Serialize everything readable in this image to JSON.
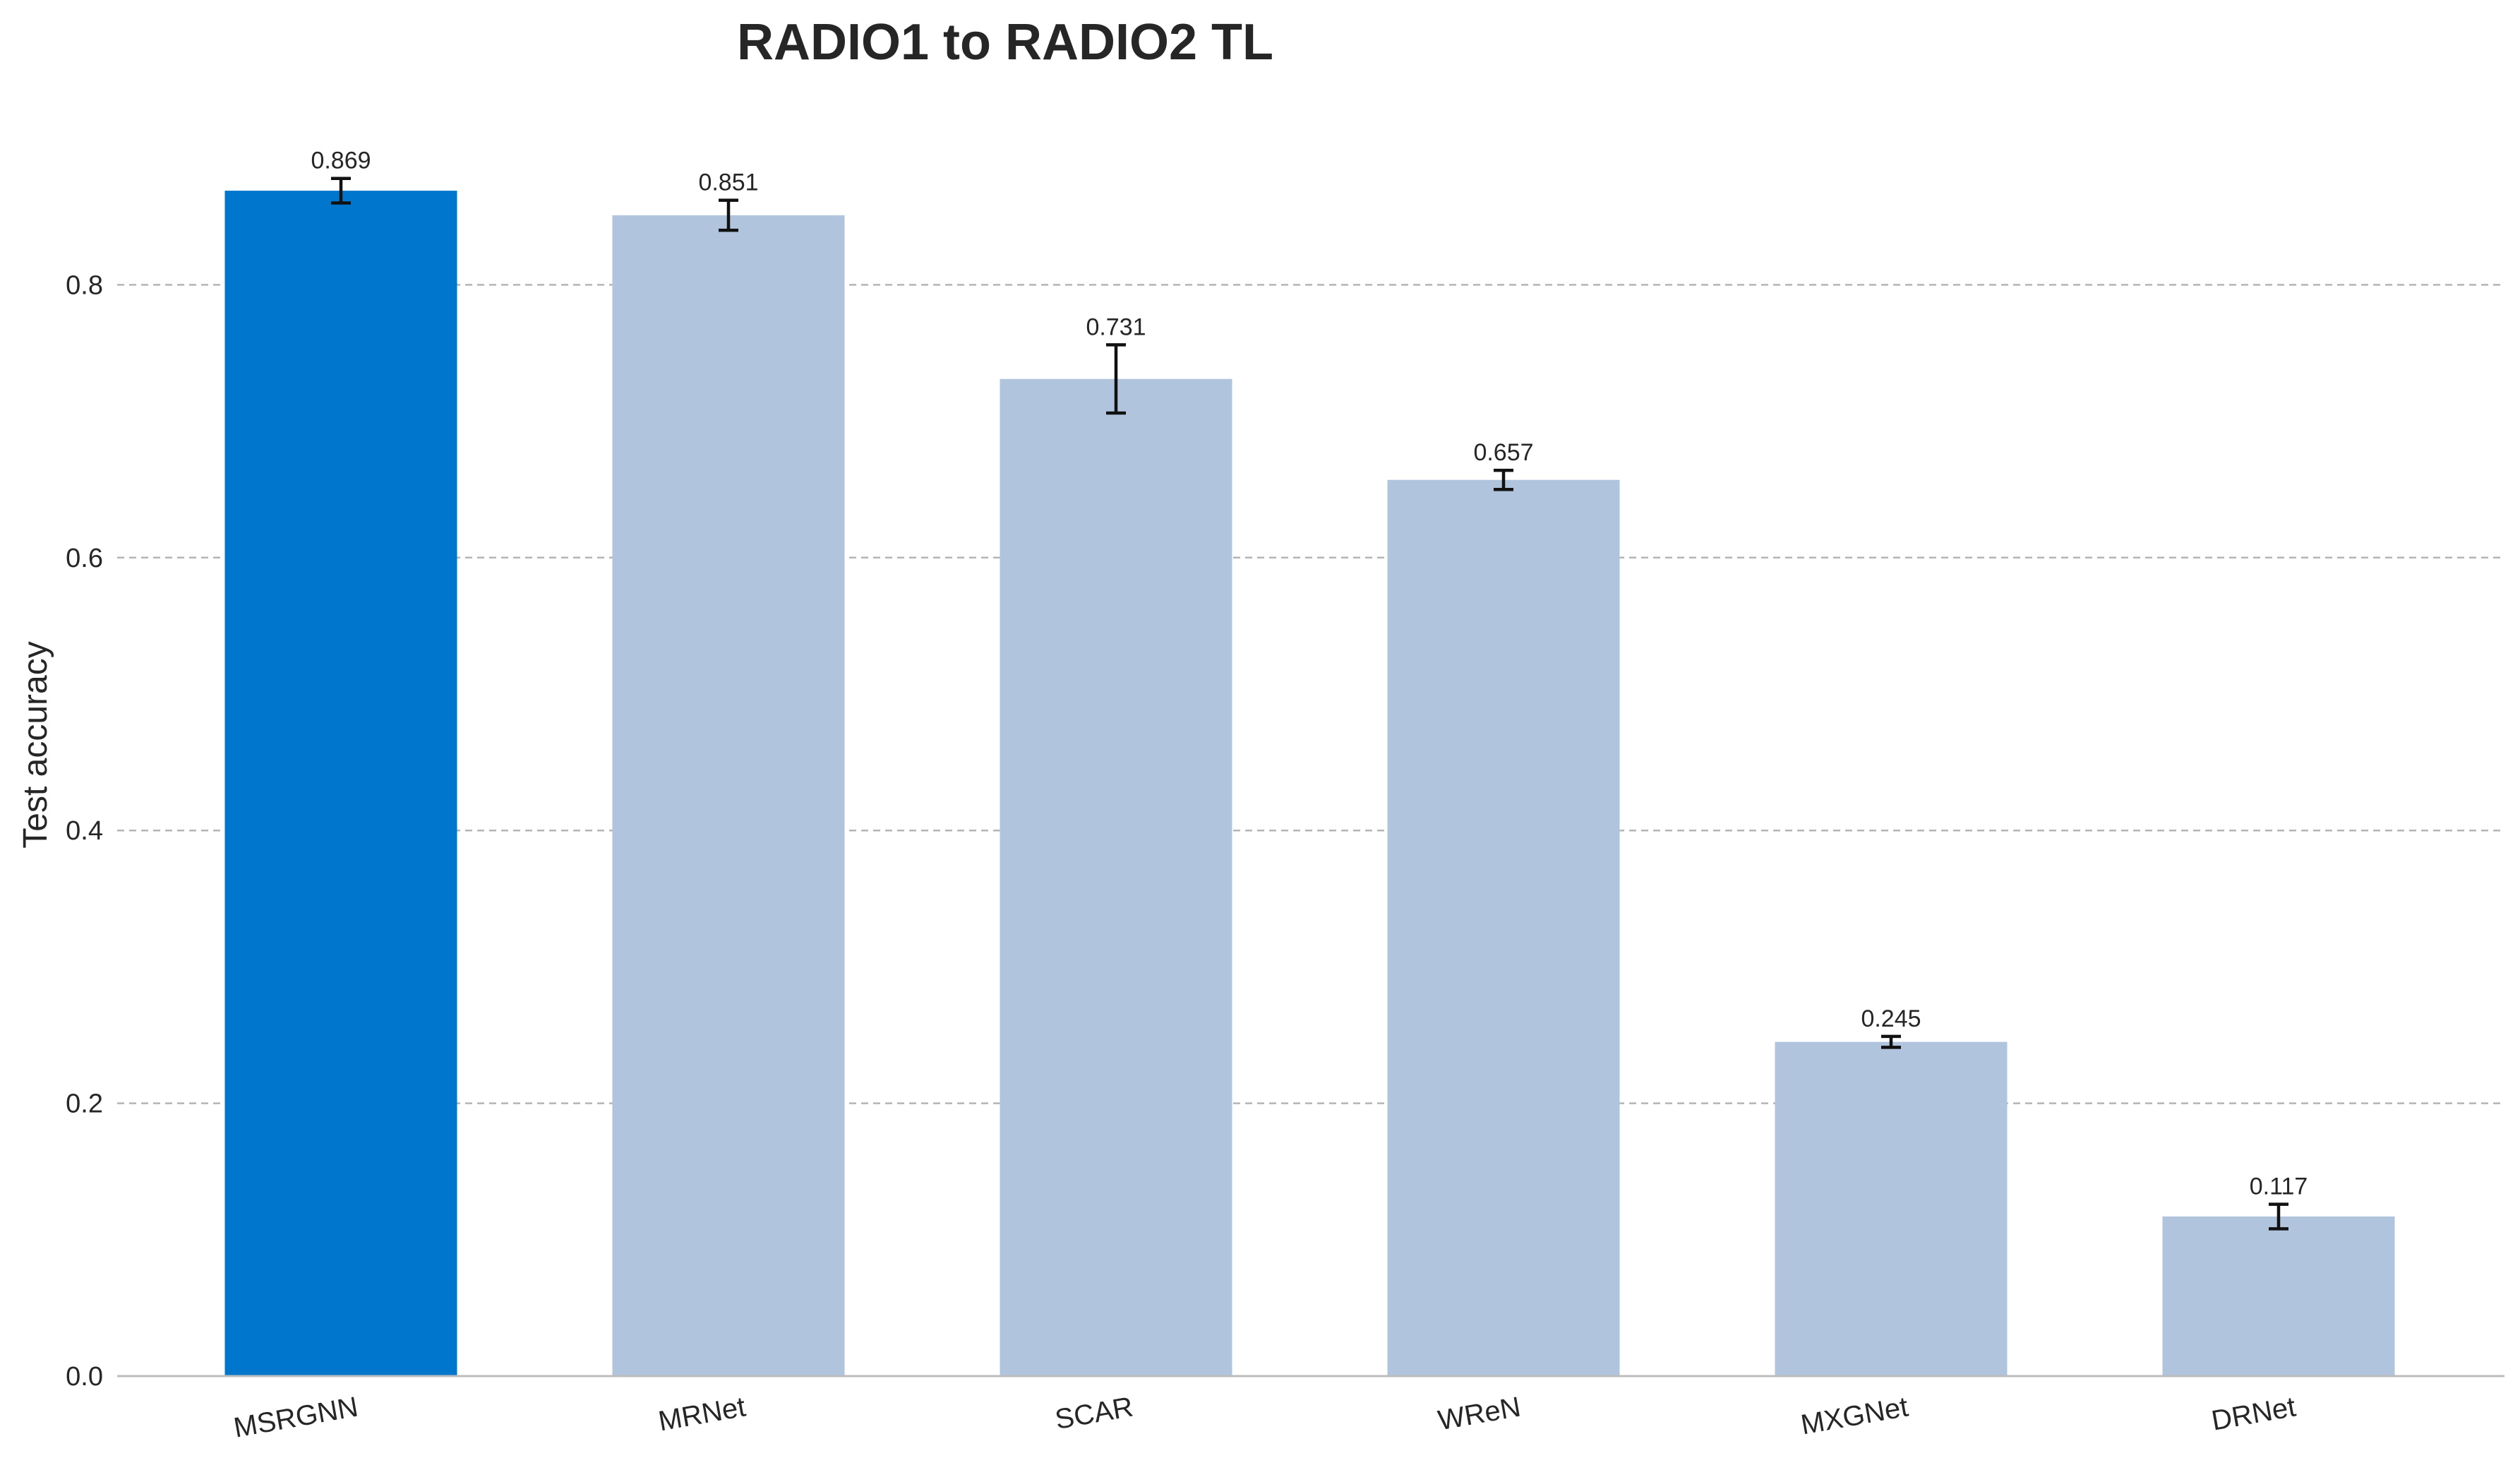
{
  "chart_data": {
    "type": "bar",
    "title": "RADIO1 to RADIO2 TL",
    "xlabel": "",
    "ylabel": "Test accuracy",
    "categories": [
      "MSRGNN",
      "MRNet",
      "SCAR",
      "WReN",
      "MXGNet",
      "DRNet"
    ],
    "values": [
      0.869,
      0.851,
      0.731,
      0.657,
      0.245,
      0.117
    ],
    "value_labels": [
      "0.869",
      "0.851",
      "0.731",
      "0.657",
      "0.245",
      "0.117"
    ],
    "errors": [
      0.009,
      0.011,
      0.025,
      0.007,
      0.004,
      0.009
    ],
    "ylim": [
      0.0,
      0.92
    ],
    "yticks": [
      0.0,
      0.2,
      0.4,
      0.6,
      0.8
    ],
    "ytick_labels": [
      "0.0",
      "0.2",
      "0.4",
      "0.6",
      "0.8"
    ],
    "grid": "horizontal dashed",
    "legend": "none",
    "colors": {
      "highlight": "#0077cc",
      "bar": "#b0c4de",
      "error_bar": "#111111",
      "grid": "#b5b5b5"
    },
    "highlight_index": 0
  }
}
